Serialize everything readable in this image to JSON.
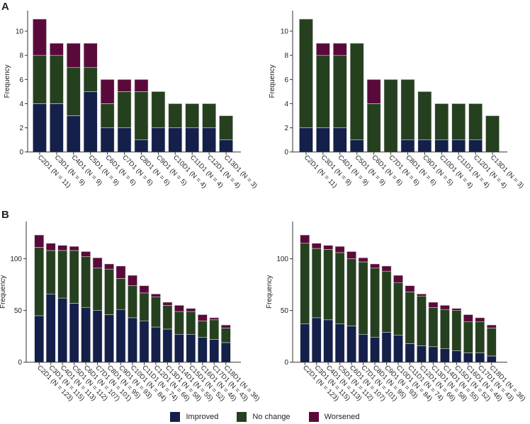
{
  "colors": {
    "improved": "#141f4a",
    "no_change": "#25401e",
    "worsened": "#5a0a3a"
  },
  "legend": [
    "Improved",
    "No change",
    "Worsened"
  ],
  "chart_data": [
    {
      "type": "bar",
      "stacked": true,
      "panel": "A",
      "title": "",
      "xlabel": "",
      "ylabel": "Frequency",
      "ylim": [
        0,
        11.7
      ],
      "yticks": [
        0,
        2,
        4,
        6,
        8,
        10
      ],
      "categories": [
        "C2D1 (N = 11)",
        "C3D1 (N = 9)",
        "C4D1 (N = 9)",
        "C5D1 (N = 9)",
        "C6D1 (N = 6)",
        "C7D1 (N = 6)",
        "C8D1 (N = 6)",
        "C9D1 (N = 5)",
        "C10D1 (N = 4)",
        "C11D1 (N = 4)",
        "C12D1 (N = 4)",
        "C13D1 (N = 3)"
      ],
      "series": [
        {
          "name": "Improved",
          "values": [
            4,
            4,
            3,
            5,
            2,
            2,
            1,
            2,
            2,
            2,
            2,
            1
          ]
        },
        {
          "name": "No change",
          "values": [
            4,
            4,
            4,
            2,
            2,
            3,
            4,
            3,
            2,
            2,
            2,
            2
          ]
        },
        {
          "name": "Worsened",
          "values": [
            3,
            1,
            2,
            2,
            2,
            1,
            1,
            0,
            0,
            0,
            0,
            0
          ]
        }
      ]
    },
    {
      "type": "bar",
      "stacked": true,
      "panel": "",
      "title": "",
      "xlabel": "",
      "ylabel": "Frequency",
      "ylim": [
        0,
        11.7
      ],
      "yticks": [
        0,
        2,
        4,
        6,
        8,
        10
      ],
      "categories": [
        "C2D1 (N = 11)",
        "C3D1 (N = 9)",
        "C4D1 (N = 9)",
        "C5D1 (N = 9)",
        "C6D1 (N = 6)",
        "C7D1 (N = 6)",
        "C8D1 (N = 6)",
        "C9D1 (N = 5)",
        "C10D1 (N = 4)",
        "C11D1 (N = 4)",
        "C12D1 (N = 4)",
        "C13D1 (N = 3)"
      ],
      "series": [
        {
          "name": "Improved",
          "values": [
            2,
            2,
            2,
            1,
            0,
            0,
            1,
            1,
            1,
            1,
            1,
            0
          ]
        },
        {
          "name": "No change",
          "values": [
            9,
            6,
            6,
            8,
            4,
            6,
            5,
            4,
            3,
            3,
            3,
            3
          ]
        },
        {
          "name": "Worsened",
          "values": [
            0,
            1,
            1,
            0,
            2,
            0,
            0,
            0,
            0,
            0,
            0,
            0
          ]
        }
      ]
    },
    {
      "type": "bar",
      "stacked": true,
      "panel": "B",
      "title": "",
      "xlabel": "",
      "ylabel": "Frequency",
      "ylim": [
        0,
        136
      ],
      "yticks": [
        0,
        50,
        100
      ],
      "categories": [
        "C2D1 (N = 123)",
        "C3D1 (N = 115)",
        "C4D1 (N = 113)",
        "C5D1 (N = 112)",
        "C6D1 (N = 107)",
        "C7D1 (N = 101)",
        "C8D1 (N = 95)",
        "C9D1 (N = 93)",
        "C10D1 (N = 84)",
        "C11D1 (N = 74)",
        "C12D1 (N = 66)",
        "C13D1 (N = 58)",
        "C14D1 (N = 55)",
        "C15D1 (N = 52)",
        "C16D1 (N = 46)",
        "C17D1 (N = 43)",
        "C18D1 (N = 36)"
      ],
      "series": [
        {
          "name": "Improved",
          "values": [
            45,
            66,
            62,
            57,
            53,
            50,
            46,
            51,
            43,
            40,
            34,
            32,
            27,
            27,
            24,
            22,
            19
          ]
        },
        {
          "name": "No change",
          "values": [
            66,
            42,
            46,
            51,
            49,
            41,
            44,
            30,
            31,
            27,
            29,
            23,
            22,
            22,
            16,
            19,
            14
          ]
        },
        {
          "name": "Worsened",
          "values": [
            12,
            7,
            5,
            4,
            5,
            10,
            5,
            12,
            10,
            7,
            3,
            3,
            6,
            3,
            6,
            2,
            3
          ]
        }
      ]
    },
    {
      "type": "bar",
      "stacked": true,
      "panel": "",
      "title": "",
      "xlabel": "",
      "ylabel": "Frequency",
      "ylim": [
        0,
        136
      ],
      "yticks": [
        0,
        50,
        100
      ],
      "categories": [
        "C2D1 (N = 123)",
        "C3D1 (N = 115)",
        "C4D1 (N = 113)",
        "C5D1 (N = 112)",
        "C6D1 (N = 107)",
        "C7D1 (N = 101)",
        "C8D1 (N = 95)",
        "C9D1 (N = 93)",
        "C10D1 (N = 84)",
        "C11D1 (N = 74)",
        "C12D1 (N = 66)",
        "C13D1 (N = 58)",
        "C14D1 (N = 55)",
        "C15D1 (N = 52)",
        "C16D1 (N = 46)",
        "C17D1 (N = 43)",
        "C18D1 (N = 36)"
      ],
      "series": [
        {
          "name": "Improved",
          "values": [
            37,
            43,
            41,
            37,
            35,
            27,
            24,
            29,
            26,
            18,
            16,
            15,
            13,
            11,
            9,
            9,
            6
          ]
        },
        {
          "name": "No change",
          "values": [
            78,
            67,
            68,
            69,
            65,
            70,
            67,
            59,
            51,
            50,
            48,
            38,
            38,
            39,
            30,
            30,
            27
          ]
        },
        {
          "name": "Worsened",
          "values": [
            8,
            5,
            4,
            6,
            7,
            4,
            4,
            5,
            7,
            6,
            2,
            5,
            4,
            2,
            7,
            4,
            3
          ]
        }
      ]
    }
  ]
}
